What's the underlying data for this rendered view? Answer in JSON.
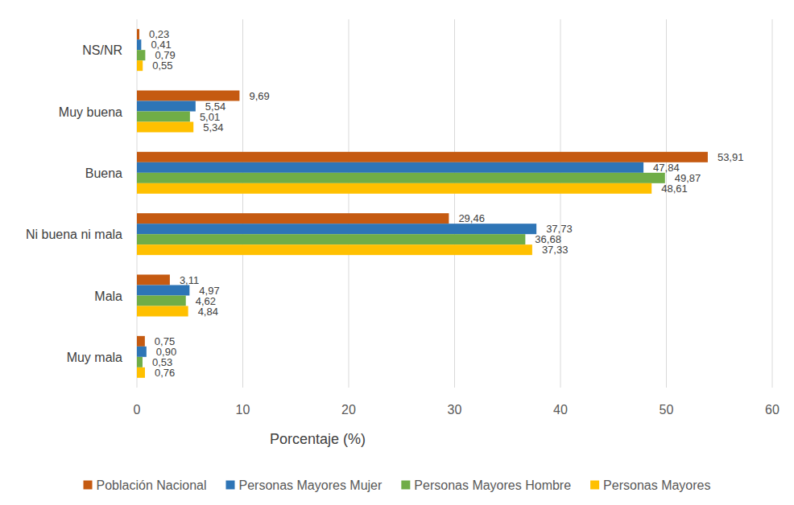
{
  "chart_data": {
    "type": "bar",
    "orientation": "horizontal",
    "xlabel": "Porcentaje (%)",
    "categories": [
      "NS/NR",
      "Muy buena",
      "Buena",
      "Ni buena ni mala",
      "Mala",
      "Muy mala"
    ],
    "series": [
      {
        "name": "Población Nacional",
        "color": "#c55a11",
        "values": [
          0.23,
          9.69,
          53.91,
          29.46,
          3.11,
          0.75
        ],
        "value_labels": [
          "0,23",
          "9,69",
          "53,91",
          "29,46",
          "3,11",
          "0,75"
        ]
      },
      {
        "name": "Personas Mayores Mujer",
        "color": "#2e75b6",
        "values": [
          0.41,
          5.54,
          47.84,
          37.73,
          4.97,
          0.9
        ],
        "value_labels": [
          "0,41",
          "5,54",
          "47,84",
          "37,73",
          "4,97",
          "0,90"
        ]
      },
      {
        "name": "Personas Mayores Hombre",
        "color": "#70ad47",
        "values": [
          0.79,
          5.01,
          49.87,
          36.68,
          4.62,
          0.53
        ],
        "value_labels": [
          "0,79",
          "5,01",
          "49,87",
          "36,68",
          "4,62",
          "0,53"
        ]
      },
      {
        "name": "Personas Mayores",
        "color": "#ffc000",
        "values": [
          0.55,
          5.34,
          48.61,
          37.33,
          4.84,
          0.76
        ],
        "value_labels": [
          "0,55",
          "5,34",
          "48,61",
          "37,33",
          "4,84",
          "0,76"
        ]
      }
    ],
    "xlim": [
      0,
      60
    ],
    "xticks": [
      0,
      10,
      20,
      30,
      40,
      50,
      60
    ],
    "grid": true,
    "data_labels": true,
    "legend": "bottom"
  }
}
